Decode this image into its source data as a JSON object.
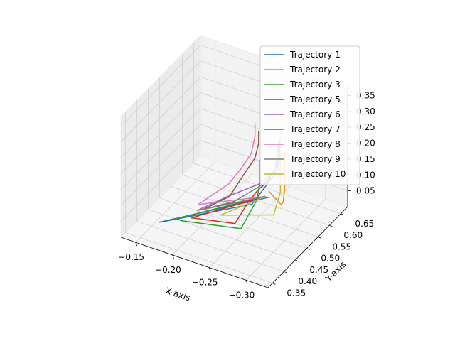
{
  "chart_data": {
    "type": "line",
    "projection": "3d",
    "xlabel": "X-axis",
    "ylabel": "Y-axis",
    "zlabel": "",
    "x_ticks": [
      "−0.30",
      "−0.25",
      "−0.20",
      "−0.15"
    ],
    "y_ticks": [
      "0.35",
      "0.40",
      "0.45",
      "0.50",
      "0.55",
      "0.60",
      "0.65"
    ],
    "z_ticks": [
      "0.05",
      "0.10",
      "0.15",
      "0.20",
      "0.25",
      "0.30",
      "0.35"
    ],
    "xlim": [
      -0.33,
      -0.13
    ],
    "ylim": [
      0.33,
      0.68
    ],
    "zlim": [
      0.0,
      0.38
    ],
    "grid": true,
    "legend": "top-right",
    "series": [
      {
        "name": "Trajectory 1",
        "color": "#1f77b4",
        "x": [
          -0.275,
          -0.272,
          -0.27,
          -0.268,
          -0.262,
          -0.17,
          -0.16,
          -0.272
        ],
        "y": [
          0.56,
          0.56,
          0.56,
          0.56,
          0.48,
          0.42,
          0.4,
          0.52
        ],
        "z": [
          0.26,
          0.22,
          0.18,
          0.14,
          0.1,
          0.02,
          0.02,
          0.1
        ]
      },
      {
        "name": "Trajectory 2",
        "color": "#ff7f0e",
        "x": [
          -0.3,
          -0.3,
          -0.3,
          -0.3,
          -0.298,
          -0.292,
          -0.272
        ],
        "y": [
          0.5,
          0.5,
          0.5,
          0.5,
          0.5,
          0.51,
          0.52
        ],
        "z": [
          0.28,
          0.24,
          0.2,
          0.16,
          0.12,
          0.1,
          0.12
        ]
      },
      {
        "name": "Trajectory 3",
        "color": "#2ca02c",
        "x": [
          -0.245,
          -0.245,
          -0.248,
          -0.25,
          -0.253,
          -0.185,
          -0.18,
          -0.268
        ],
        "y": [
          0.57,
          0.57,
          0.56,
          0.54,
          0.46,
          0.42,
          0.41,
          0.52
        ],
        "z": [
          0.16,
          0.12,
          0.1,
          0.06,
          0.03,
          0.03,
          0.04,
          0.1
        ]
      },
      {
        "name": "Trajectory 5",
        "color": "#d62728",
        "x": [
          -0.262,
          -0.262,
          -0.254,
          -0.25,
          -0.245,
          -0.195,
          -0.268
        ],
        "y": [
          0.56,
          0.56,
          0.53,
          0.5,
          0.46,
          0.43,
          0.52
        ],
        "z": [
          0.14,
          0.12,
          0.1,
          0.08,
          0.04,
          0.04,
          0.1
        ]
      },
      {
        "name": "Trajectory 6",
        "color": "#9467bd",
        "x": [
          -0.275,
          -0.275,
          -0.273,
          -0.255,
          -0.23,
          -0.2,
          -0.268
        ],
        "y": [
          0.56,
          0.56,
          0.56,
          0.53,
          0.48,
          0.44,
          0.52
        ],
        "z": [
          0.26,
          0.22,
          0.16,
          0.12,
          0.1,
          0.06,
          0.1
        ]
      },
      {
        "name": "Trajectory 7",
        "color": "#8c564b",
        "x": [
          -0.24,
          -0.24,
          -0.238,
          -0.23,
          -0.225,
          -0.205,
          -0.268
        ],
        "y": [
          0.58,
          0.58,
          0.57,
          0.55,
          0.5,
          0.45,
          0.52
        ],
        "z": [
          0.24,
          0.2,
          0.16,
          0.12,
          0.08,
          0.06,
          0.1
        ]
      },
      {
        "name": "Trajectory 8",
        "color": "#e377c2",
        "x": [
          -0.235,
          -0.235,
          -0.233,
          -0.225,
          -0.218,
          -0.195,
          -0.268
        ],
        "y": [
          0.58,
          0.58,
          0.57,
          0.55,
          0.52,
          0.46,
          0.52
        ],
        "z": [
          0.26,
          0.22,
          0.17,
          0.13,
          0.1,
          0.06,
          0.1
        ]
      },
      {
        "name": "Trajectory 9",
        "color": "#7f7f7f",
        "x": [
          -0.274,
          -0.274,
          -0.272,
          -0.26,
          -0.235,
          -0.205,
          -0.268
        ],
        "y": [
          0.56,
          0.56,
          0.56,
          0.54,
          0.49,
          0.45,
          0.52
        ],
        "z": [
          0.26,
          0.22,
          0.17,
          0.12,
          0.08,
          0.06,
          0.1
        ]
      },
      {
        "name": "Trajectory 10",
        "color": "#bcbd22",
        "x": [
          -0.285,
          -0.285,
          -0.285,
          -0.285,
          -0.282,
          -0.228,
          -0.268
        ],
        "y": [
          0.53,
          0.53,
          0.53,
          0.53,
          0.51,
          0.45,
          0.52
        ],
        "z": [
          0.24,
          0.2,
          0.16,
          0.12,
          0.06,
          0.06,
          0.1
        ]
      }
    ]
  }
}
